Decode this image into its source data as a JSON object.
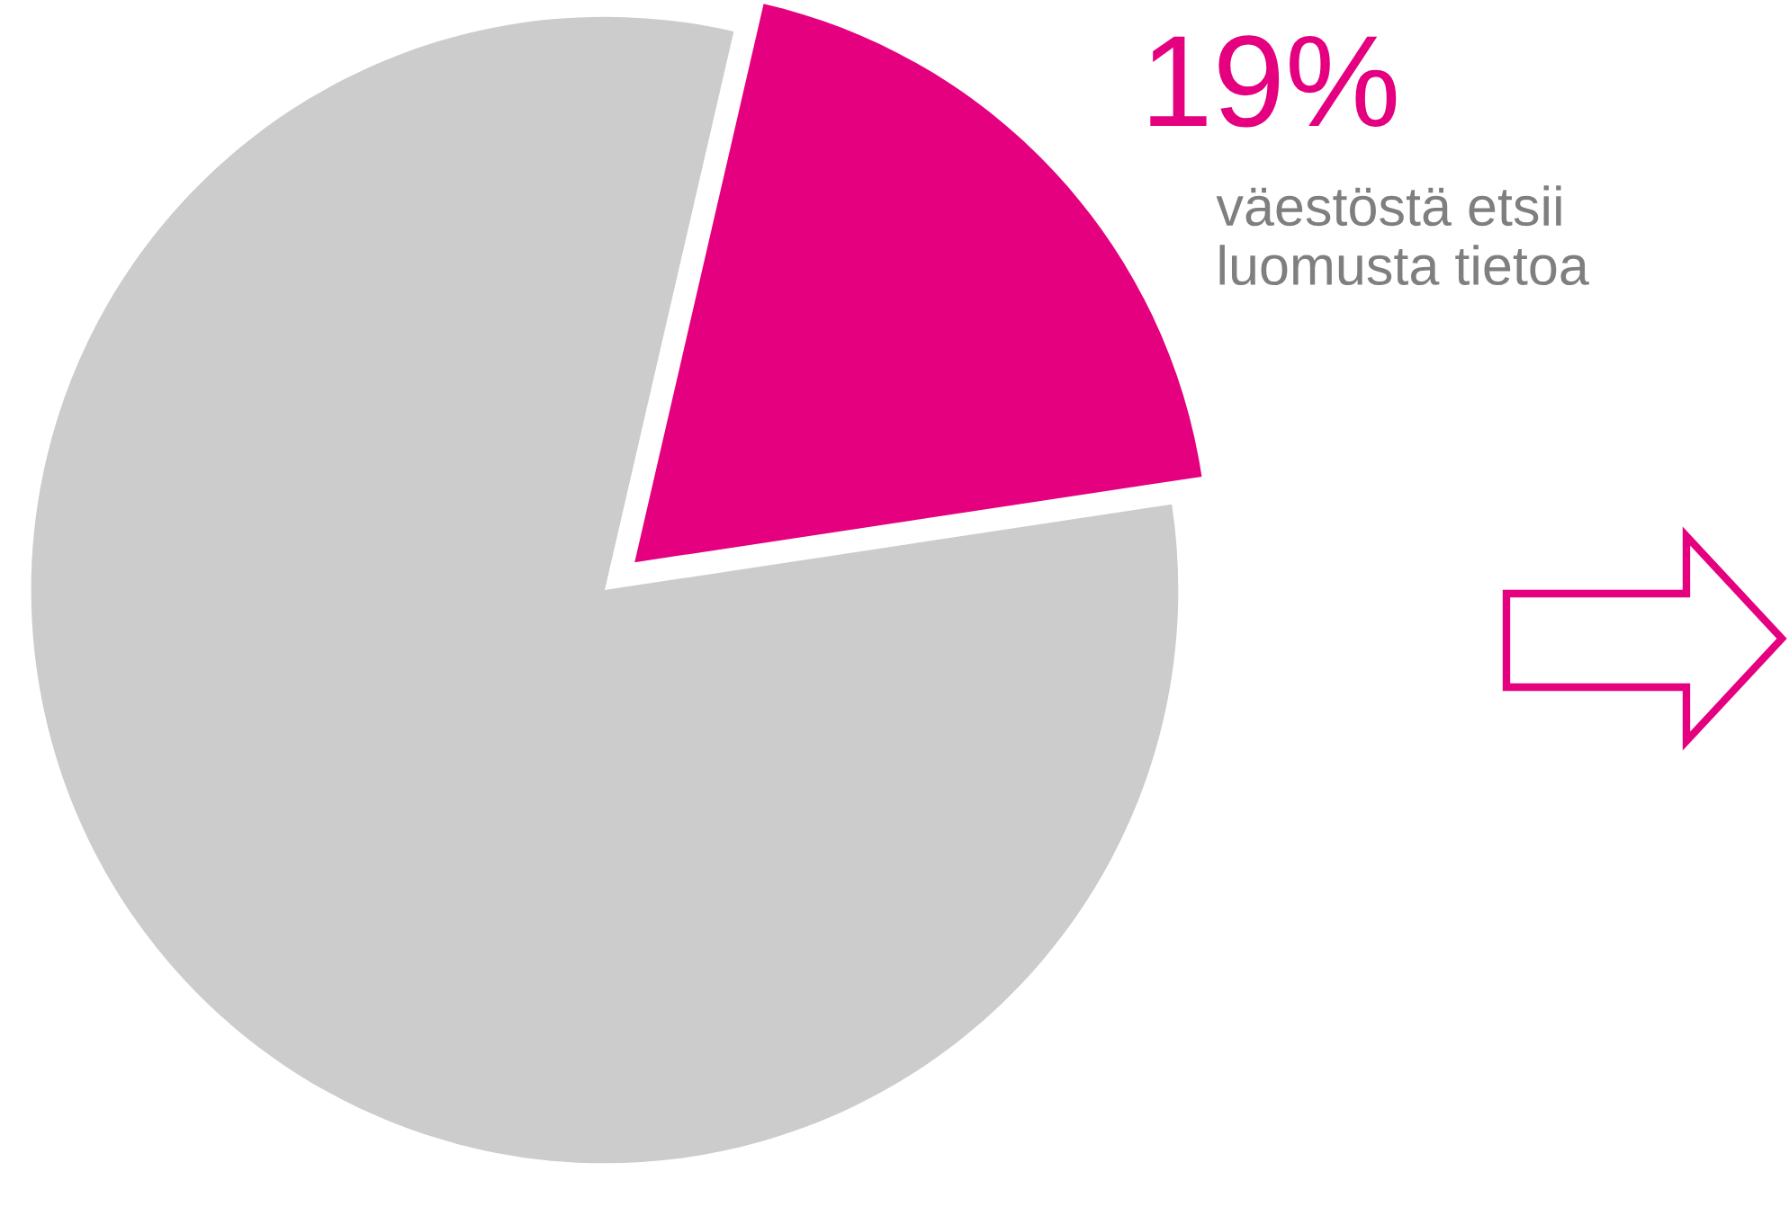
{
  "chart_data": {
    "type": "pie",
    "categories": [
      "väestöstä etsii\nluomusta tietoa",
      null
    ],
    "values": [
      19,
      81
    ],
    "colors": [
      "#e4007f",
      "#cccccc"
    ],
    "value_labels": [
      "19%",
      null
    ]
  }
}
